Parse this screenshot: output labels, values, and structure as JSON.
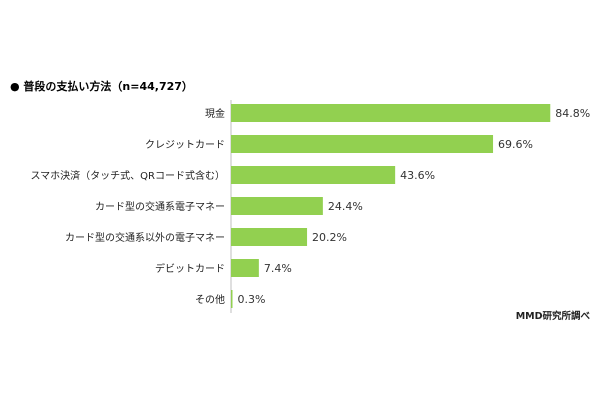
{
  "chart_data": {
    "type": "bar",
    "orientation": "horizontal",
    "title": "●  普段の支払い方法（n=44,727）",
    "categories": [
      "現金",
      "クレジットカード",
      "スマホ決済（タッチ式、QRコード式含む）",
      "カード型の交通系電子マネー",
      "カード型の交通系以外の電子マネー",
      "デビットカード",
      "その他"
    ],
    "values": [
      84.8,
      69.6,
      43.6,
      24.4,
      20.2,
      7.4,
      0.3
    ],
    "value_labels": [
      "84.8%",
      "69.6%",
      "43.6%",
      "24.4%",
      "20.2%",
      "7.4%",
      "0.3%"
    ],
    "unit": "%",
    "xlim": [
      0,
      100
    ],
    "bar_color": "#92d050",
    "grid": false,
    "legend": "none",
    "source": "MMD研究所調べ"
  }
}
